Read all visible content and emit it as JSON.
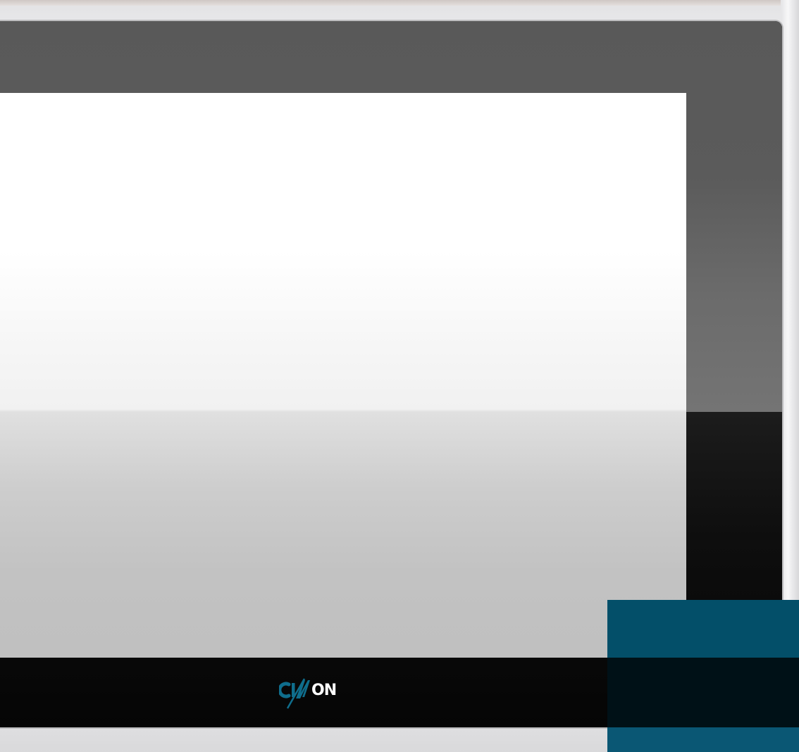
{
  "device": {
    "brand_logo_text": "CIMON",
    "colors": {
      "housing": "#ececee",
      "bezel": "#0b0b0b",
      "bezel_reflection": "#5b5b5b",
      "screen_top": "#ffffff",
      "screen_bottom": "#c0c0c0",
      "brand_blue": "#034f69",
      "logo_accent": "#0f6d8c"
    },
    "icons": {
      "logo": "cimon-logo-icon"
    }
  }
}
